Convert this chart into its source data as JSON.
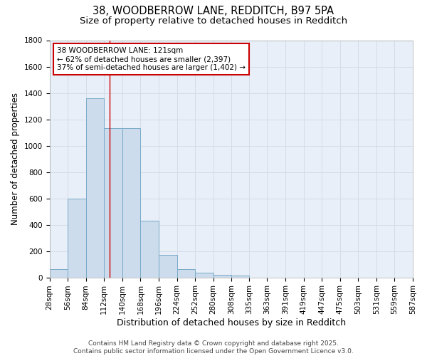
{
  "title": "38, WOODBERROW LANE, REDDITCH, B97 5PA",
  "subtitle": "Size of property relative to detached houses in Redditch",
  "xlabel": "Distribution of detached houses by size in Redditch",
  "ylabel": "Number of detached properties",
  "bin_edges": [
    28,
    56,
    84,
    112,
    140,
    168,
    196,
    224,
    252,
    280,
    308,
    335,
    363,
    391,
    419,
    447,
    475,
    503,
    531,
    559,
    587
  ],
  "bin_counts": [
    60,
    600,
    1360,
    1130,
    1130,
    430,
    170,
    65,
    35,
    20,
    15,
    0,
    0,
    0,
    0,
    0,
    0,
    0,
    0,
    0
  ],
  "bar_facecolor": "#ccdcec",
  "bar_edgecolor": "#7aaac8",
  "grid_color": "#d4dce8",
  "background_color": "#e8eff8",
  "vline_x": 121,
  "vline_color": "#cc0000",
  "annotation_line1": "38 WOODBERROW LANE: 121sqm",
  "annotation_line2": "← 62% of detached houses are smaller (2,397)",
  "annotation_line3": "37% of semi-detached houses are larger (1,402) →",
  "annotation_box_color": "#cc0000",
  "annotation_bg": "#ffffff",
  "ylim": [
    0,
    1800
  ],
  "yticks": [
    0,
    200,
    400,
    600,
    800,
    1000,
    1200,
    1400,
    1600,
    1800
  ],
  "footer_text": "Contains HM Land Registry data © Crown copyright and database right 2025.\nContains public sector information licensed under the Open Government Licence v3.0.",
  "title_fontsize": 10.5,
  "subtitle_fontsize": 9.5,
  "ylabel_fontsize": 8.5,
  "xlabel_fontsize": 9,
  "tick_fontsize": 7.5,
  "annotation_fontsize": 7.5,
  "footer_fontsize": 6.5
}
